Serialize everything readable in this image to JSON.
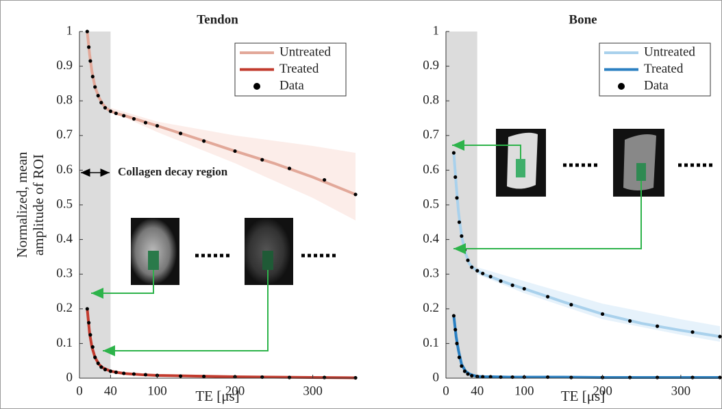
{
  "chart_data": [
    {
      "type": "line",
      "title": "Tendon",
      "xlabel": "TE [μs]",
      "ylabel": [
        "Normalized, mean",
        "amplitude of ROI"
      ],
      "annotation": "Collagen decay region",
      "xlim": [
        0,
        355
      ],
      "ylim": [
        0,
        1
      ],
      "xticks": [
        0,
        40,
        100,
        200,
        300
      ],
      "yticks": [
        0,
        0.1,
        0.2,
        0.3,
        0.4,
        0.5,
        0.6,
        0.7,
        0.8,
        0.9,
        1
      ],
      "shaded_region": [
        0,
        40
      ],
      "legend": "upper right",
      "grid": false,
      "band": {
        "color": "#fbeae5",
        "x": [
          40,
          100,
          200,
          300,
          355
        ],
        "lower": [
          0.77,
          0.71,
          0.62,
          0.52,
          0.455
        ],
        "upper": [
          0.78,
          0.74,
          0.7,
          0.67,
          0.65
        ]
      },
      "series": [
        {
          "name": "Untreated",
          "kind": "line",
          "color": "#e2a899",
          "x": [
            10,
            13,
            16,
            20,
            25,
            30,
            35,
            40,
            50,
            60,
            80,
            100,
            150,
            200,
            250,
            300,
            355
          ],
          "values": [
            1,
            0.935,
            0.885,
            0.84,
            0.81,
            0.79,
            0.778,
            0.77,
            0.762,
            0.756,
            0.742,
            0.728,
            0.692,
            0.655,
            0.62,
            0.58,
            0.53
          ]
        },
        {
          "name": "Treated",
          "kind": "line",
          "color": "#c23b2e",
          "x": [
            10,
            13,
            16,
            20,
            25,
            30,
            35,
            40,
            50,
            60,
            80,
            100,
            150,
            200,
            250,
            300,
            355
          ],
          "values": [
            0.2,
            0.13,
            0.09,
            0.06,
            0.04,
            0.03,
            0.025,
            0.02,
            0.016,
            0.013,
            0.01,
            0.008,
            0.006,
            0.004,
            0.003,
            0.002,
            0.001
          ]
        },
        {
          "name": "Data",
          "kind": "scatter",
          "color": "#000000",
          "x": [
            10,
            12,
            14,
            17,
            20,
            24,
            28,
            33,
            40,
            47,
            57,
            70,
            85,
            100,
            130,
            160,
            200,
            235,
            270,
            315,
            355,
            10,
            12,
            14,
            17,
            20,
            24,
            28,
            33,
            40,
            47,
            57,
            70,
            85,
            100,
            130,
            160,
            200,
            235,
            270,
            315,
            355
          ],
          "values": [
            1,
            0.955,
            0.915,
            0.87,
            0.84,
            0.815,
            0.795,
            0.78,
            0.77,
            0.764,
            0.757,
            0.748,
            0.737,
            0.728,
            0.706,
            0.684,
            0.655,
            0.63,
            0.605,
            0.572,
            0.53,
            0.2,
            0.16,
            0.125,
            0.09,
            0.06,
            0.043,
            0.032,
            0.025,
            0.02,
            0.017,
            0.014,
            0.012,
            0.01,
            0.008,
            0.006,
            0.005,
            0.004,
            0.003,
            0.002,
            0.002,
            0.001
          ]
        }
      ]
    },
    {
      "type": "line",
      "title": "Bone",
      "xlabel": "TE [μs]",
      "xlim": [
        0,
        350
      ],
      "ylim": [
        0,
        1
      ],
      "xticks": [
        0,
        40,
        100,
        200,
        300
      ],
      "yticks": [
        0,
        0.1,
        0.2,
        0.3,
        0.4,
        0.5,
        0.6,
        0.7,
        0.8,
        0.9,
        1
      ],
      "shaded_region": [
        0,
        40
      ],
      "legend": "upper right",
      "grid": false,
      "band": {
        "color": "#e2f0fa",
        "x": [
          40,
          100,
          200,
          300,
          350
        ],
        "lower": [
          0.3,
          0.245,
          0.17,
          0.125,
          0.105
        ],
        "upper": [
          0.32,
          0.28,
          0.215,
          0.17,
          0.15
        ]
      },
      "series": [
        {
          "name": "Untreated",
          "kind": "line",
          "color": "#a9d1ec",
          "x": [
            10,
            13,
            16,
            20,
            25,
            30,
            35,
            40,
            50,
            60,
            80,
            100,
            150,
            200,
            250,
            300,
            350
          ],
          "values": [
            0.65,
            0.56,
            0.48,
            0.41,
            0.36,
            0.33,
            0.318,
            0.31,
            0.298,
            0.29,
            0.273,
            0.258,
            0.22,
            0.185,
            0.158,
            0.138,
            0.12
          ]
        },
        {
          "name": "Treated",
          "kind": "line",
          "color": "#2b80c2",
          "x": [
            10,
            13,
            16,
            20,
            25,
            30,
            35,
            40,
            50,
            60,
            80,
            100,
            150,
            200,
            250,
            300,
            350
          ],
          "values": [
            0.18,
            0.12,
            0.08,
            0.04,
            0.02,
            0.012,
            0.008,
            0.005,
            0.004,
            0.004,
            0.003,
            0.003,
            0.003,
            0.002,
            0.002,
            0.002,
            0.002
          ]
        },
        {
          "name": "Data",
          "kind": "scatter",
          "color": "#000000",
          "x": [
            10,
            12,
            14,
            17,
            20,
            24,
            28,
            33,
            40,
            47,
            57,
            70,
            85,
            100,
            130,
            160,
            200,
            235,
            270,
            315,
            350,
            10,
            12,
            14,
            17,
            20,
            24,
            28,
            33,
            40,
            47,
            57,
            70,
            85,
            100,
            130,
            160,
            200,
            235,
            270,
            315,
            350
          ],
          "values": [
            0.65,
            0.58,
            0.52,
            0.45,
            0.41,
            0.37,
            0.34,
            0.32,
            0.31,
            0.302,
            0.293,
            0.28,
            0.268,
            0.258,
            0.235,
            0.212,
            0.185,
            0.165,
            0.15,
            0.133,
            0.12,
            0.18,
            0.14,
            0.1,
            0.06,
            0.035,
            0.02,
            0.012,
            0.007,
            0.005,
            0.004,
            0.004,
            0.003,
            0.003,
            0.003,
            0.003,
            0.002,
            0.002,
            0.002,
            0.002,
            0.002,
            0.002
          ]
        }
      ]
    }
  ]
}
